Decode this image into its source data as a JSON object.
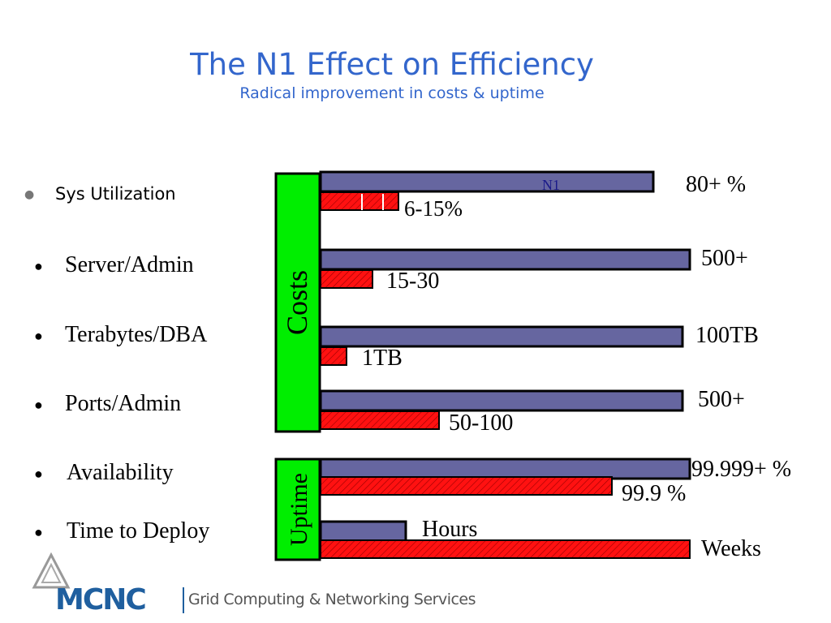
{
  "title": "The N1 Effect on Efficiency",
  "subtitle": "Radical improvement in costs & uptime",
  "bullets": [
    "Sys Utilization",
    "Server/Admin",
    "Terabytes/DBA",
    "Ports/Admin",
    "Availability",
    "Time to Deploy"
  ],
  "footer": {
    "logo": "MCNC",
    "text": "Grid Computing & Networking Services"
  },
  "chart_data": {
    "type": "bar",
    "orientation": "horizontal",
    "groups": [
      {
        "label": "Costs",
        "categories": [
          "Sys Utilization",
          "Server/Admin",
          "Terabytes/DBA",
          "Ports/Admin"
        ]
      },
      {
        "label": "Uptime",
        "categories": [
          "Availability",
          "Time to Deploy"
        ]
      }
    ],
    "series": [
      {
        "name": "N1",
        "color": "#6666a0",
        "labels": [
          "80+ %",
          "500+",
          "100TB",
          "500+",
          "99.999+ %",
          "Hours"
        ],
        "relative_lengths": [
          0.9,
          1.0,
          0.98,
          0.98,
          1.0,
          0.23
        ]
      },
      {
        "color": "#ff1111",
        "pattern": "hatched",
        "labels": [
          "6-15%",
          "15-30",
          "1TB",
          "50-100",
          "99.9 %",
          "Weeks"
        ],
        "relative_lengths": [
          0.21,
          0.14,
          0.07,
          0.32,
          0.79,
          1.0
        ]
      }
    ],
    "colors": {
      "group_box": "#00ee00",
      "title": "#3366cc"
    }
  }
}
